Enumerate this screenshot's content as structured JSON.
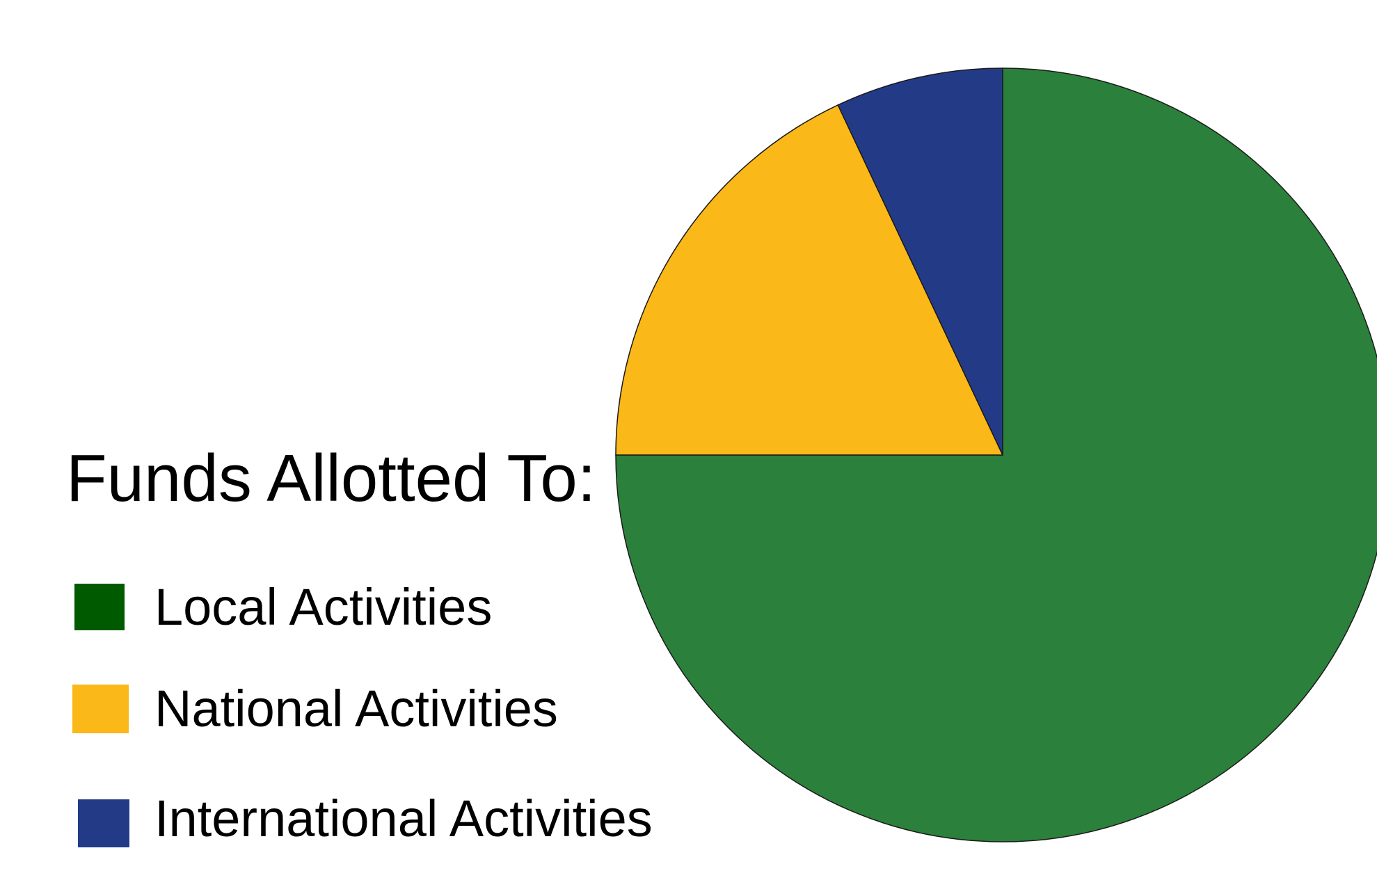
{
  "chart_data": {
    "type": "pie",
    "title": "Funds Allotted To:",
    "categories": [
      "Local Activities",
      "National Activities",
      "International Activities"
    ],
    "values": [
      75,
      18,
      7
    ],
    "colors": {
      "slices": [
        "#2b803b",
        "#fbb819",
        "#233b87"
      ],
      "legend": [
        "#005b00",
        "#fbb819",
        "#233b87"
      ],
      "outline": "#1a1a1a"
    },
    "start_angle_deg": 0,
    "direction": "clockwise",
    "legend_position": "left"
  }
}
